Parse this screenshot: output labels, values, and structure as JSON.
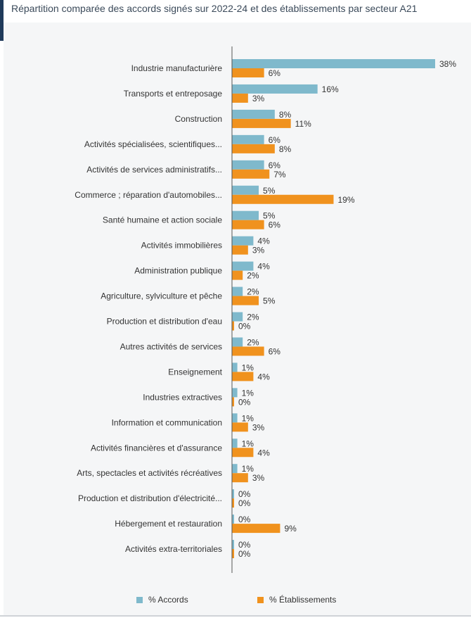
{
  "title": "Répartition comparée des accords signés sur 2022-24 et des établissements par secteur A21",
  "colors": {
    "accords": "#7fb9cc",
    "etablissements": "#f0921e",
    "axis": "#555555"
  },
  "chart_data": {
    "type": "bar",
    "orientation": "horizontal",
    "title": "Répartition comparée des accords signés sur 2022-24 et des établissements par secteur A21",
    "xlim": [
      0,
      38
    ],
    "value_suffix": "%",
    "categories": [
      "Industrie manufacturière",
      "Transports et entreposage",
      "Construction",
      "Activités spécialisées, scientifiques...",
      "Activités de services administratifs...",
      "Commerce ; réparation d'automobiles...",
      "Santé humaine et action sociale",
      "Activités immobilières",
      "Administration publique",
      "Agriculture, sylviculture et pêche",
      "Production et distribution d'eau",
      "Autres activités de services",
      "Enseignement",
      "Industries extractives",
      "Information et communication",
      "Activités financières et d'assurance",
      "Arts, spectacles et activités récréatives",
      "Production et distribution d'électricité...",
      "Hébergement et restauration",
      "Activités extra-territoriales"
    ],
    "series": [
      {
        "name": "% Accords",
        "values": [
          38,
          16,
          8,
          6,
          6,
          5,
          5,
          4,
          4,
          2,
          2,
          2,
          1,
          1,
          1,
          1,
          1,
          0,
          0,
          0
        ]
      },
      {
        "name": "% Établissements",
        "values": [
          6,
          3,
          11,
          8,
          7,
          19,
          6,
          3,
          2,
          5,
          0,
          6,
          4,
          0,
          3,
          4,
          3,
          0,
          9,
          0
        ]
      }
    ],
    "legend": [
      "% Accords",
      "% Établissements"
    ]
  }
}
